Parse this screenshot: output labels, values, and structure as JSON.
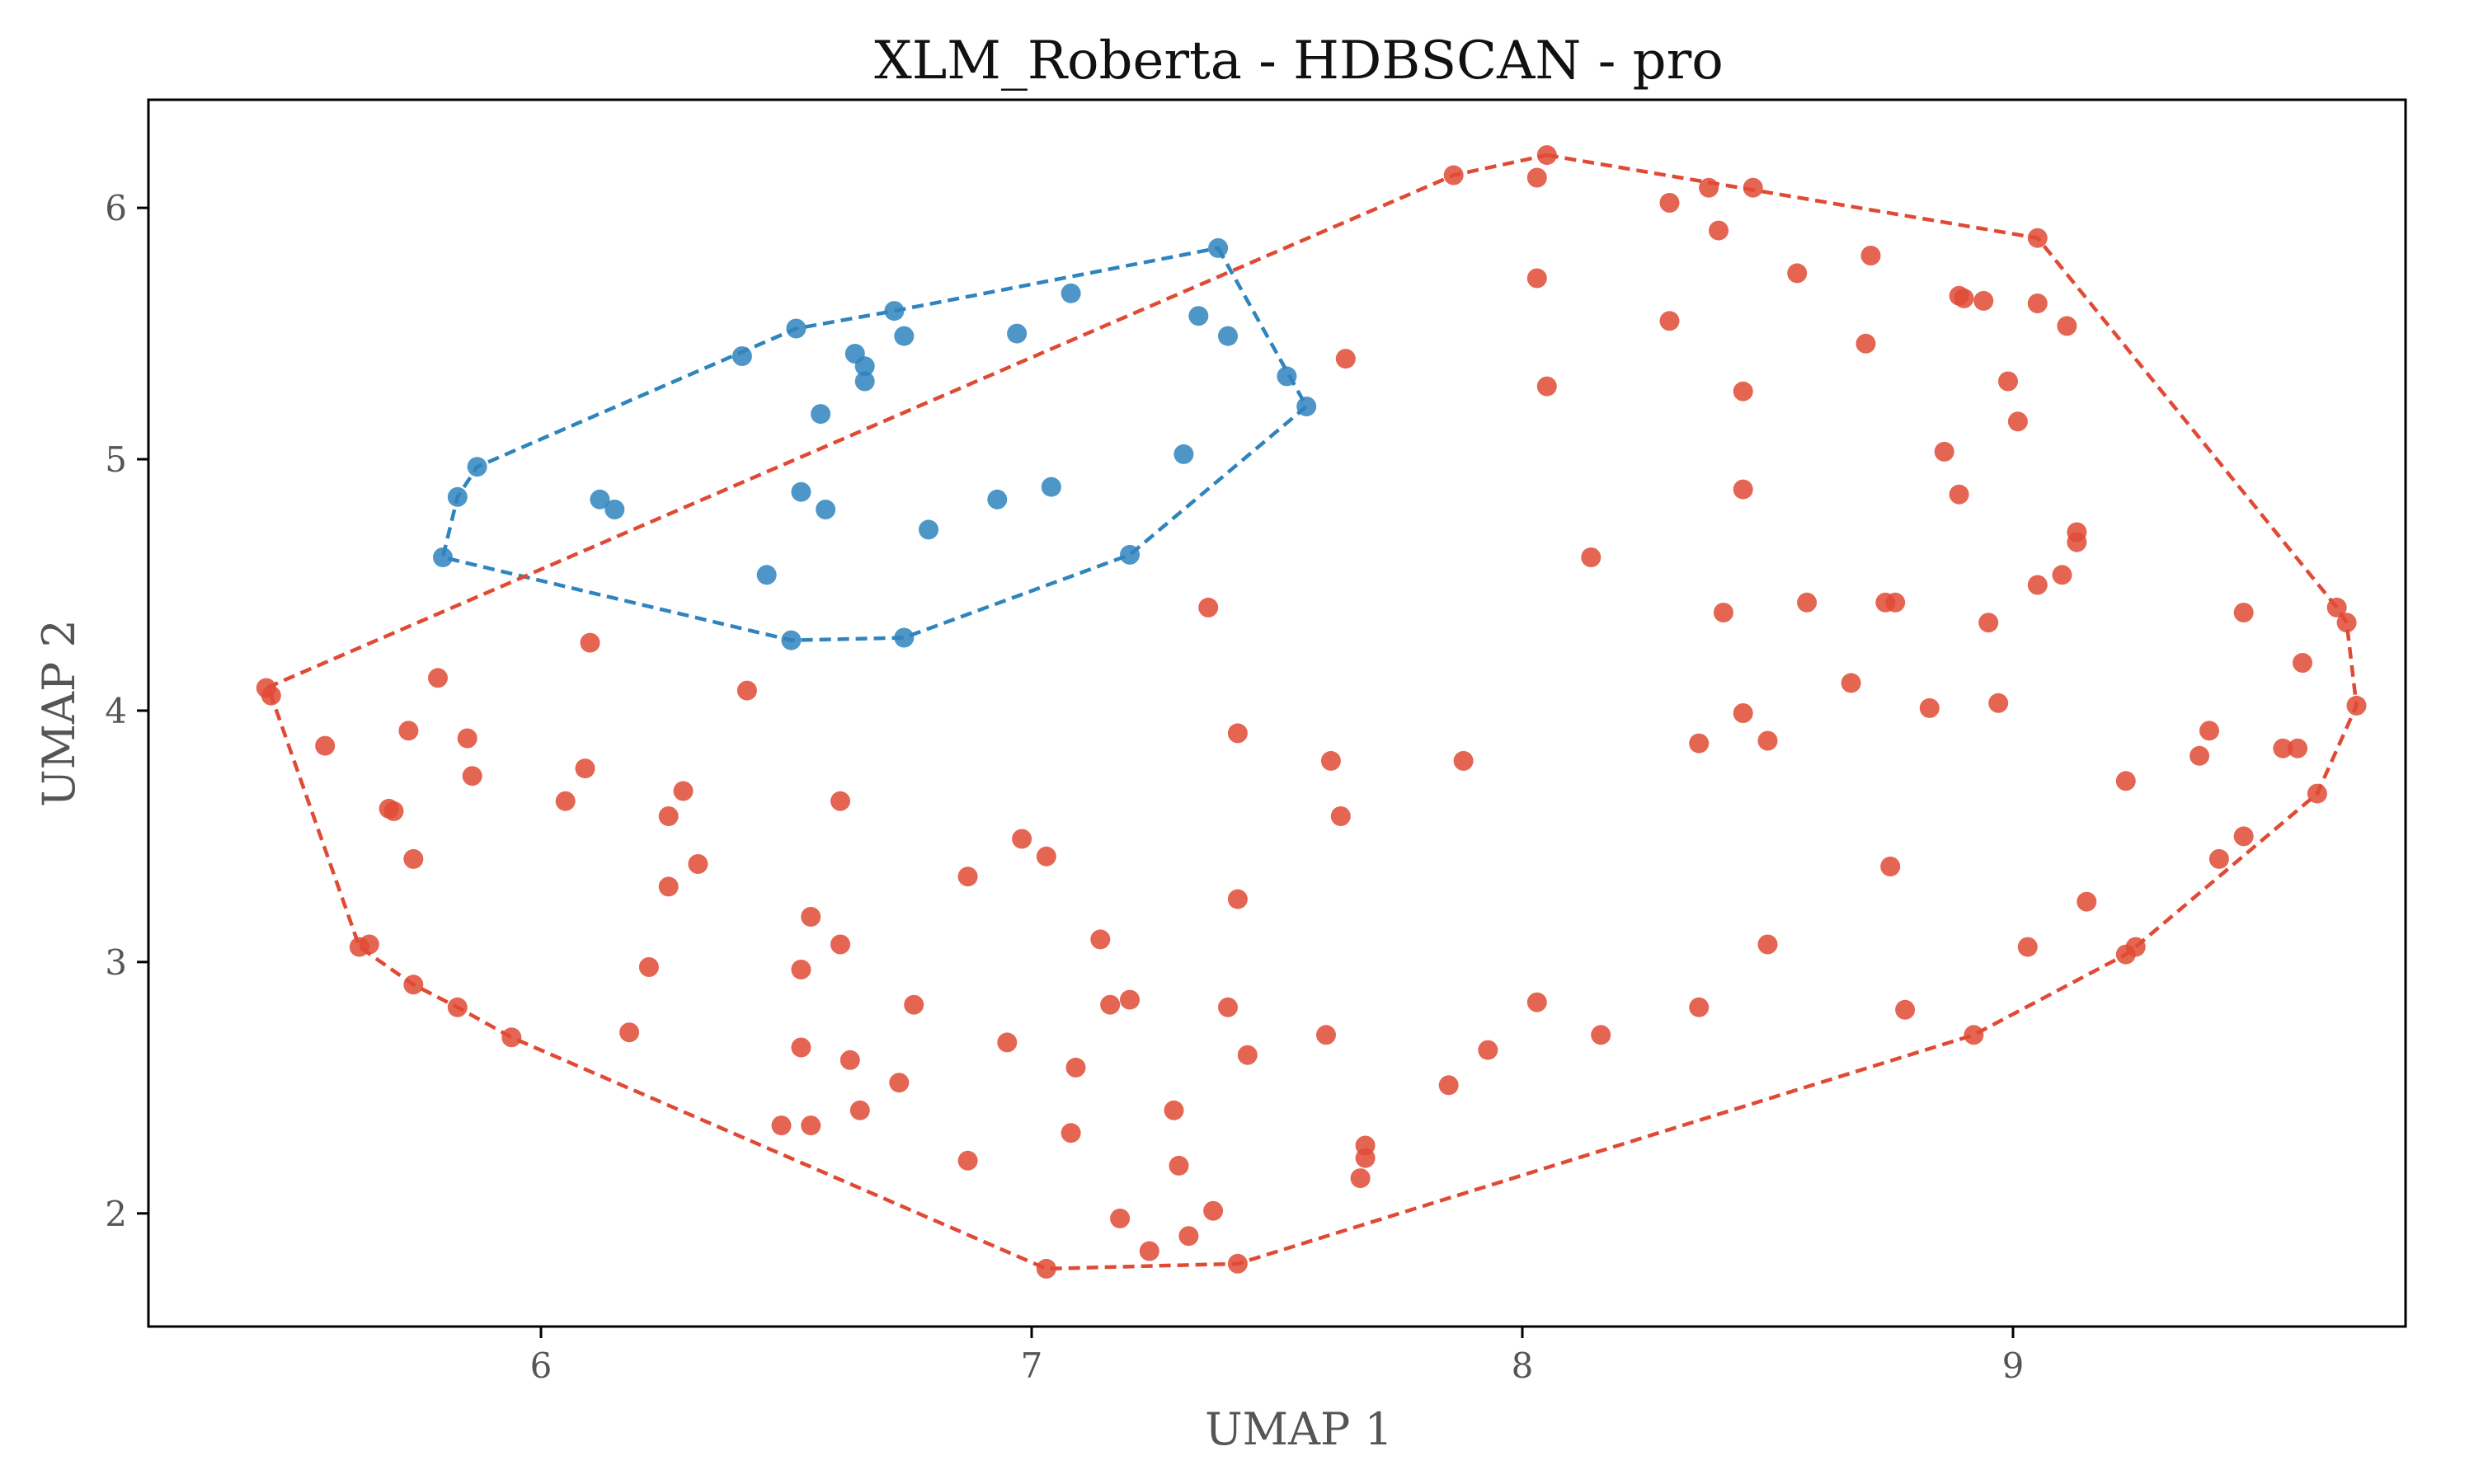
{
  "colors": {
    "cluster_blue": "#2f84bd",
    "cluster_red": "#e04a35",
    "axes": "#000000",
    "text": "#555555",
    "title": "#111111"
  },
  "chart_data": {
    "type": "scatter",
    "title": "XLM_Roberta - HDBSCAN - pro",
    "xlabel": "UMAP 1",
    "ylabel": "UMAP 2",
    "xlim": [
      5.2,
      9.8
    ],
    "ylim": [
      1.55,
      6.43
    ],
    "xticks": [
      6,
      7,
      8,
      9
    ],
    "yticks": [
      2,
      3,
      4,
      5,
      6
    ],
    "grid": false,
    "legend": "none",
    "series": [
      {
        "color": "#2f84bd",
        "points": [
          [
            7.38,
            5.84
          ],
          [
            7.08,
            5.66
          ],
          [
            6.72,
            5.59
          ],
          [
            6.52,
            5.52
          ],
          [
            6.41,
            5.41
          ],
          [
            6.64,
            5.42
          ],
          [
            6.66,
            5.37
          ],
          [
            6.66,
            5.31
          ],
          [
            6.74,
            5.49
          ],
          [
            6.97,
            5.5
          ],
          [
            7.34,
            5.57
          ],
          [
            7.4,
            5.49
          ],
          [
            7.52,
            5.33
          ],
          [
            7.56,
            5.21
          ],
          [
            6.57,
            5.18
          ],
          [
            5.87,
            4.97
          ],
          [
            5.83,
            4.85
          ],
          [
            6.12,
            4.84
          ],
          [
            6.15,
            4.8
          ],
          [
            6.53,
            4.87
          ],
          [
            6.58,
            4.8
          ],
          [
            6.79,
            4.72
          ],
          [
            6.93,
            4.84
          ],
          [
            7.04,
            4.89
          ],
          [
            7.31,
            5.02
          ],
          [
            5.8,
            4.61
          ],
          [
            6.46,
            4.54
          ],
          [
            7.2,
            4.62
          ],
          [
            6.51,
            4.28
          ],
          [
            6.74,
            4.29
          ]
        ],
        "hull": [
          [
            7.38,
            5.84
          ],
          [
            7.56,
            5.21
          ],
          [
            7.2,
            4.62
          ],
          [
            6.74,
            4.29
          ],
          [
            6.51,
            4.28
          ],
          [
            5.8,
            4.61
          ],
          [
            5.83,
            4.85
          ],
          [
            5.87,
            4.97
          ],
          [
            6.52,
            5.52
          ],
          [
            6.72,
            5.59
          ]
        ]
      },
      {
        "color": "#e04a35",
        "points": [
          [
            8.05,
            6.21
          ],
          [
            8.03,
            6.12
          ],
          [
            7.86,
            6.13
          ],
          [
            8.3,
            6.02
          ],
          [
            8.38,
            6.08
          ],
          [
            8.47,
            6.08
          ],
          [
            8.4,
            5.91
          ],
          [
            9.05,
            5.88
          ],
          [
            8.56,
            5.74
          ],
          [
            8.71,
            5.81
          ],
          [
            8.03,
            5.72
          ],
          [
            8.3,
            5.55
          ],
          [
            8.89,
            5.65
          ],
          [
            8.9,
            5.64
          ],
          [
            8.94,
            5.63
          ],
          [
            9.05,
            5.62
          ],
          [
            9.11,
            5.53
          ],
          [
            8.7,
            5.46
          ],
          [
            7.64,
            5.4
          ],
          [
            8.05,
            5.29
          ],
          [
            8.45,
            5.27
          ],
          [
            8.99,
            5.31
          ],
          [
            9.01,
            5.15
          ],
          [
            8.86,
            5.03
          ],
          [
            8.45,
            4.88
          ],
          [
            8.89,
            4.86
          ],
          [
            9.13,
            4.71
          ],
          [
            9.13,
            4.67
          ],
          [
            8.14,
            4.61
          ],
          [
            9.1,
            4.54
          ],
          [
            9.05,
            4.5
          ],
          [
            8.58,
            4.43
          ],
          [
            8.74,
            4.43
          ],
          [
            8.76,
            4.43
          ],
          [
            7.36,
            4.41
          ],
          [
            8.41,
            4.39
          ],
          [
            8.95,
            4.35
          ],
          [
            9.47,
            4.39
          ],
          [
            9.66,
            4.41
          ],
          [
            9.68,
            4.35
          ],
          [
            9.59,
            4.19
          ],
          [
            6.1,
            4.27
          ],
          [
            5.79,
            4.13
          ],
          [
            6.42,
            4.08
          ],
          [
            5.44,
            4.09
          ],
          [
            5.45,
            4.06
          ],
          [
            8.67,
            4.11
          ],
          [
            8.45,
            3.99
          ],
          [
            8.83,
            4.01
          ],
          [
            8.97,
            4.03
          ],
          [
            9.7,
            4.02
          ],
          [
            5.73,
            3.92
          ],
          [
            5.56,
            3.86
          ],
          [
            5.85,
            3.89
          ],
          [
            7.42,
            3.91
          ],
          [
            8.36,
            3.87
          ],
          [
            8.5,
            3.88
          ],
          [
            9.4,
            3.92
          ],
          [
            9.38,
            3.82
          ],
          [
            9.55,
            3.85
          ],
          [
            9.58,
            3.85
          ],
          [
            6.09,
            3.77
          ],
          [
            5.86,
            3.74
          ],
          [
            7.61,
            3.8
          ],
          [
            7.88,
            3.8
          ],
          [
            9.23,
            3.72
          ],
          [
            6.05,
            3.64
          ],
          [
            6.29,
            3.68
          ],
          [
            6.61,
            3.64
          ],
          [
            6.26,
            3.58
          ],
          [
            5.69,
            3.61
          ],
          [
            5.7,
            3.6
          ],
          [
            7.63,
            3.58
          ],
          [
            9.62,
            3.67
          ],
          [
            6.98,
            3.49
          ],
          [
            7.03,
            3.42
          ],
          [
            5.74,
            3.41
          ],
          [
            6.32,
            3.39
          ],
          [
            9.47,
            3.5
          ],
          [
            9.42,
            3.41
          ],
          [
            8.75,
            3.38
          ],
          [
            6.87,
            3.34
          ],
          [
            6.26,
            3.3
          ],
          [
            7.42,
            3.25
          ],
          [
            9.15,
            3.24
          ],
          [
            6.55,
            3.18
          ],
          [
            5.65,
            3.07
          ],
          [
            5.63,
            3.06
          ],
          [
            6.61,
            3.07
          ],
          [
            7.14,
            3.09
          ],
          [
            8.5,
            3.07
          ],
          [
            9.03,
            3.06
          ],
          [
            9.25,
            3.06
          ],
          [
            9.23,
            3.03
          ],
          [
            6.53,
            2.97
          ],
          [
            6.22,
            2.98
          ],
          [
            5.74,
            2.91
          ],
          [
            6.76,
            2.83
          ],
          [
            5.83,
            2.82
          ],
          [
            7.16,
            2.83
          ],
          [
            7.2,
            2.85
          ],
          [
            7.4,
            2.82
          ],
          [
            8.03,
            2.84
          ],
          [
            8.36,
            2.82
          ],
          [
            8.78,
            2.81
          ],
          [
            6.18,
            2.72
          ],
          [
            5.94,
            2.7
          ],
          [
            6.95,
            2.68
          ],
          [
            7.6,
            2.71
          ],
          [
            8.16,
            2.71
          ],
          [
            8.92,
            2.71
          ],
          [
            6.53,
            2.66
          ],
          [
            6.63,
            2.61
          ],
          [
            7.44,
            2.63
          ],
          [
            7.93,
            2.65
          ],
          [
            7.09,
            2.58
          ],
          [
            6.73,
            2.52
          ],
          [
            7.85,
            2.51
          ],
          [
            6.65,
            2.41
          ],
          [
            7.29,
            2.41
          ],
          [
            6.49,
            2.35
          ],
          [
            6.55,
            2.35
          ],
          [
            7.08,
            2.32
          ],
          [
            7.68,
            2.27
          ],
          [
            7.68,
            2.22
          ],
          [
            6.87,
            2.21
          ],
          [
            7.3,
            2.19
          ],
          [
            7.67,
            2.14
          ],
          [
            7.18,
            1.98
          ],
          [
            7.37,
            2.01
          ],
          [
            7.32,
            1.91
          ],
          [
            7.24,
            1.85
          ],
          [
            7.42,
            1.8
          ],
          [
            7.03,
            1.78
          ]
        ],
        "hull": [
          [
            8.05,
            6.21
          ],
          [
            9.05,
            5.88
          ],
          [
            9.66,
            4.41
          ],
          [
            9.68,
            4.35
          ],
          [
            9.7,
            4.02
          ],
          [
            9.62,
            3.67
          ],
          [
            9.25,
            3.06
          ],
          [
            9.23,
            3.03
          ],
          [
            8.92,
            2.71
          ],
          [
            7.42,
            1.8
          ],
          [
            7.03,
            1.78
          ],
          [
            5.94,
            2.7
          ],
          [
            5.83,
            2.82
          ],
          [
            5.74,
            2.91
          ],
          [
            5.63,
            3.06
          ],
          [
            5.45,
            4.06
          ],
          [
            5.44,
            4.09
          ],
          [
            7.86,
            6.13
          ]
        ]
      }
    ]
  }
}
